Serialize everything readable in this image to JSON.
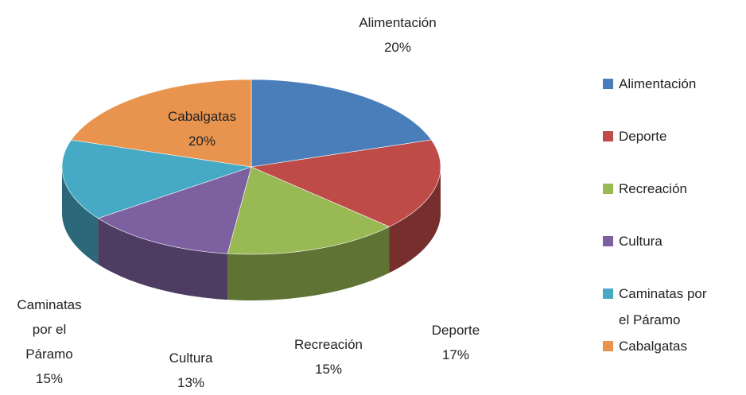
{
  "chart_data": {
    "type": "pie",
    "categories": [
      "Alimentación",
      "Deporte",
      "Recreación",
      "Cultura",
      "Caminatas por el Páramo",
      "Cabalgatas"
    ],
    "values": [
      20,
      17,
      15,
      13,
      15,
      20
    ],
    "value_labels": [
      "20%",
      "17%",
      "15%",
      "13%",
      "15%",
      "20%"
    ],
    "colors": [
      "#4a7ebb",
      "#be4b48",
      "#98b954",
      "#7d60a0",
      "#46aac5",
      "#e8944e"
    ],
    "legend": "right"
  }
}
